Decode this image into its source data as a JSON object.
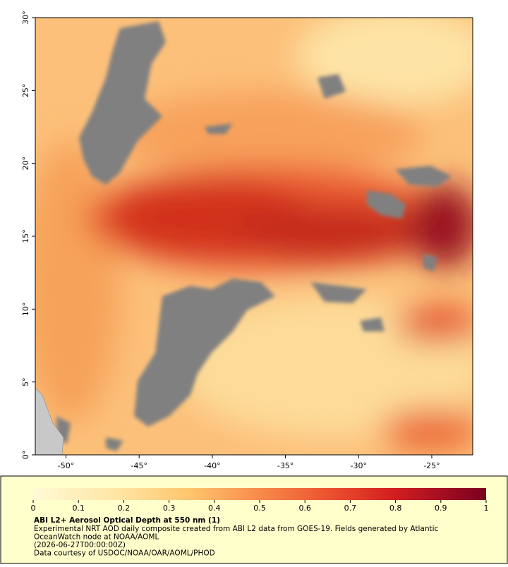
{
  "map": {
    "xlim": [
      -52.1,
      -22.2
    ],
    "ylim": [
      0,
      30
    ],
    "xticks": [
      {
        "value": -50,
        "label": "-50°"
      },
      {
        "value": -45,
        "label": "-45°"
      },
      {
        "value": -40,
        "label": "-40°"
      },
      {
        "value": -35,
        "label": "-35°"
      },
      {
        "value": -30,
        "label": "-30°"
      },
      {
        "value": -25,
        "label": "-25°"
      }
    ],
    "yticks": [
      {
        "value": 0,
        "label": "0°"
      },
      {
        "value": 5,
        "label": "5°"
      },
      {
        "value": 10,
        "label": "10°"
      },
      {
        "value": 15,
        "label": "15°"
      },
      {
        "value": 20,
        "label": "20°"
      },
      {
        "value": 25,
        "label": "25°"
      },
      {
        "value": 30,
        "label": "30°"
      }
    ]
  },
  "colorbar": {
    "lim": [
      0,
      1
    ],
    "ticks": [
      0,
      0.1,
      0.2,
      0.3,
      0.4,
      0.5,
      0.6,
      0.7,
      0.8,
      0.9,
      1
    ]
  },
  "caption": {
    "title": "ABI L2+ Aerosol Optical Depth at 550 nm (1)",
    "lines": [
      "Experimental NRT AOD daily composite created from ABI L2 data from GOES-19. Fields generated by Atlantic",
      "OceanWatch node at NOAA/AOML",
      "(2026-06-27T00:00:00Z)",
      "Data courtesy of USDOC/NOAA/OAR/AOML/PHOD"
    ]
  }
}
